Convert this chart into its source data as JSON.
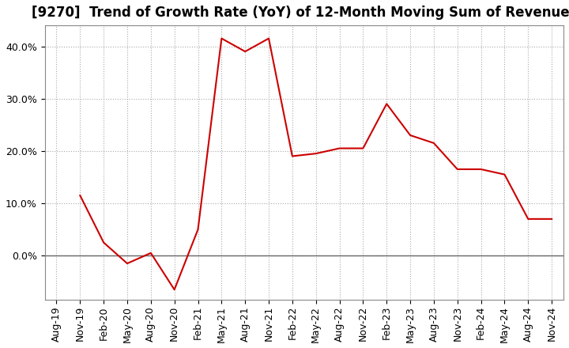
{
  "title": "[9270]  Trend of Growth Rate (YoY) of 12-Month Moving Sum of Revenues",
  "line_color": "#cc0000",
  "background_color": "#ffffff",
  "grid_color": "#aaaaaa",
  "zero_line_color": "#666666",
  "dates": [
    "Aug-19",
    "Nov-19",
    "Feb-20",
    "May-20",
    "Aug-20",
    "Nov-20",
    "Feb-21",
    "May-21",
    "Aug-21",
    "Nov-21",
    "Feb-22",
    "May-22",
    "Aug-22",
    "Nov-22",
    "Feb-23",
    "May-23",
    "Aug-23",
    "Nov-23",
    "Feb-24",
    "May-24",
    "Aug-24",
    "Nov-24"
  ],
  "values": [
    null,
    11.5,
    2.5,
    -1.5,
    0.5,
    -6.5,
    5.0,
    41.5,
    39.0,
    41.5,
    19.0,
    19.5,
    20.5,
    20.5,
    29.0,
    23.0,
    21.5,
    16.5,
    16.5,
    15.5,
    7.0,
    7.0
  ],
  "ylim": [
    -8.5,
    44
  ],
  "yticks": [
    0,
    10,
    20,
    30,
    40
  ],
  "title_fontsize": 12,
  "tick_fontsize": 9
}
